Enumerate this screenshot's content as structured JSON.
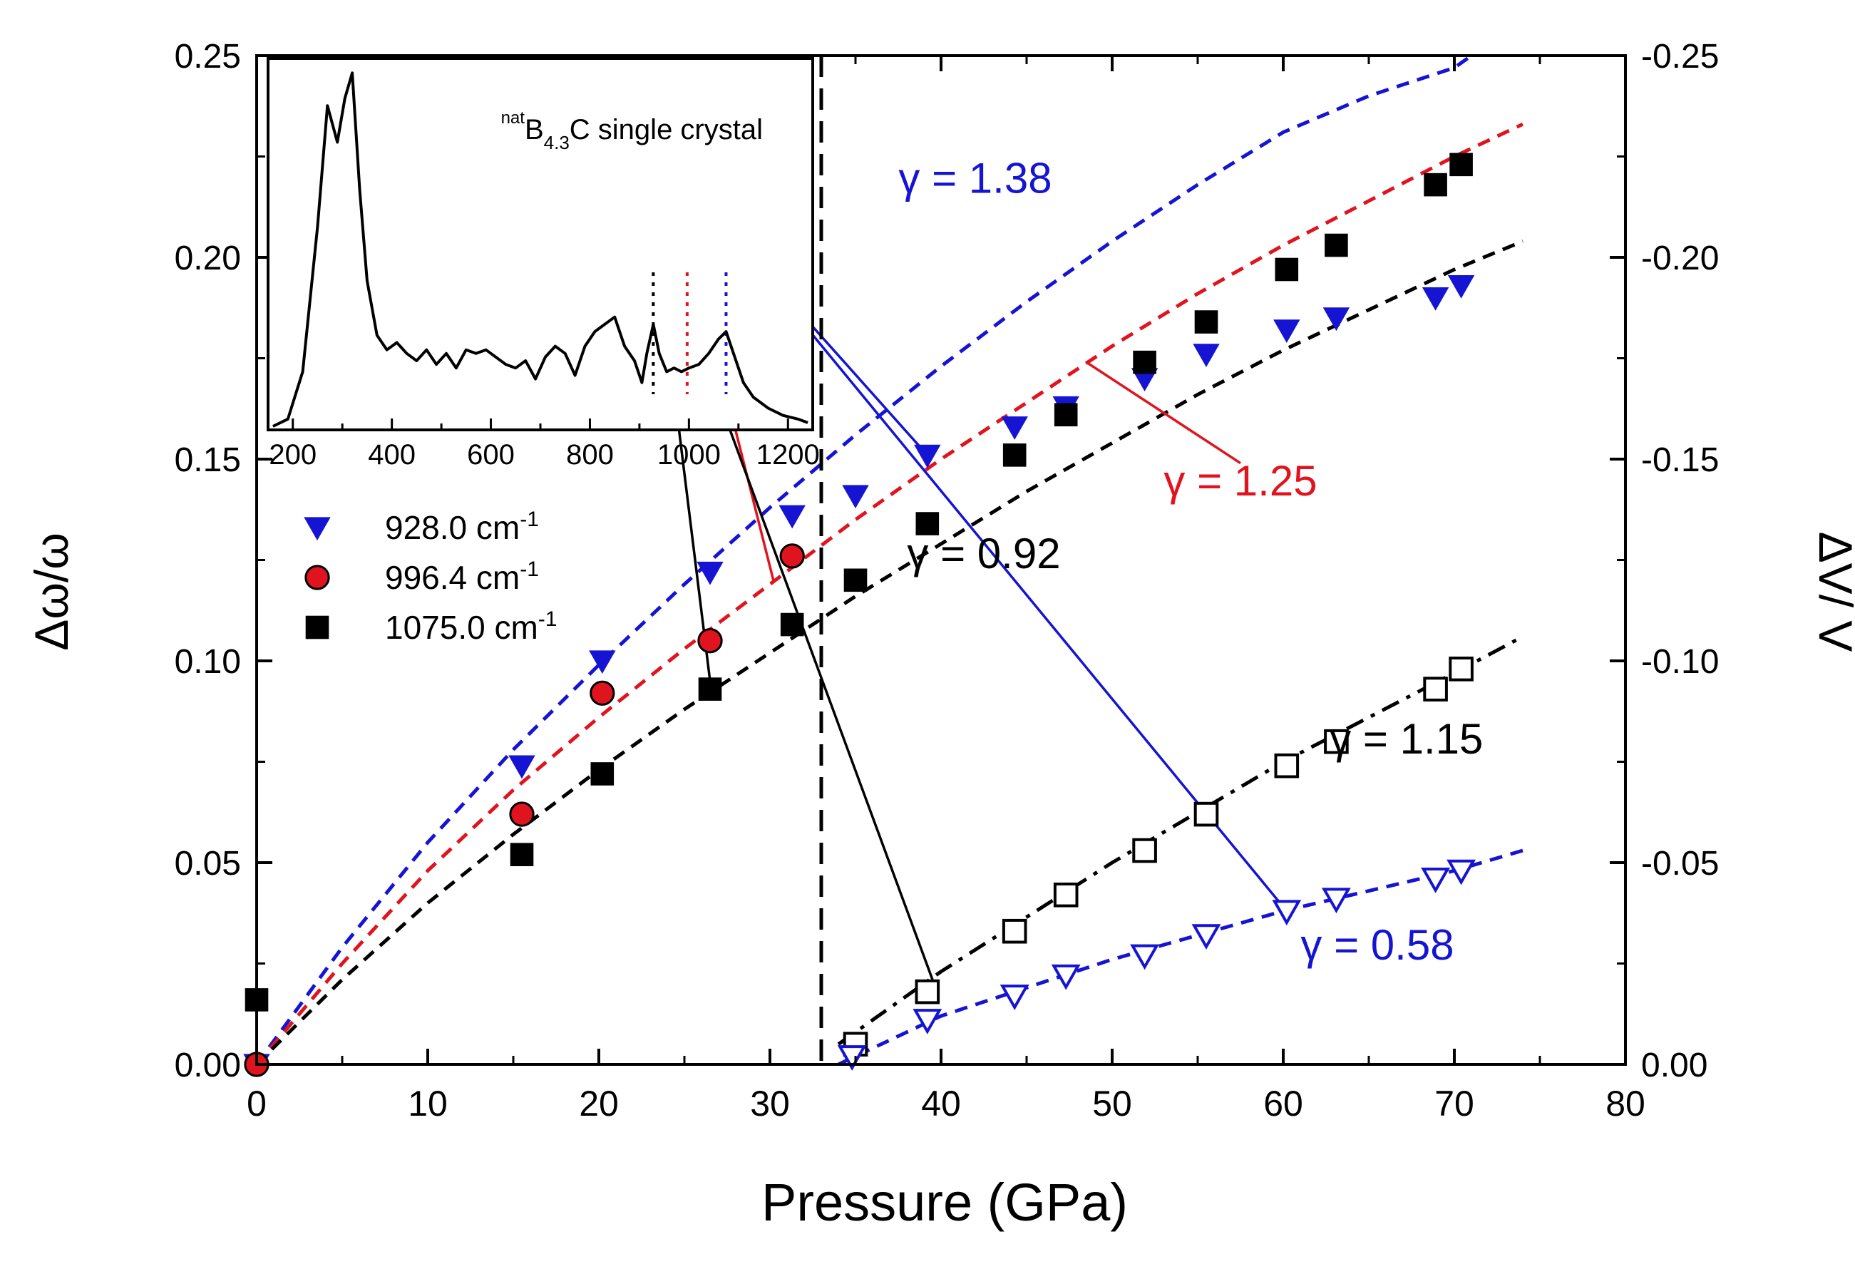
{
  "chart_data": {
    "type": "scatter",
    "xlabel": "Pressure (GPa)",
    "ylabel_left": "Δω/ω",
    "ylabel_right": "ΔV/ V",
    "xlim": [
      0,
      80
    ],
    "ylim_left": [
      0,
      0.25
    ],
    "ylim_right": [
      0,
      -0.25
    ],
    "x_ticks": [
      "0",
      "10",
      "20",
      "30",
      "40",
      "50",
      "60",
      "70",
      "80"
    ],
    "y_ticks_left": [
      "0.00",
      "0.05",
      "0.10",
      "0.15",
      "0.20",
      "0.25"
    ],
    "y_ticks_right": [
      "0.00",
      "-0.05",
      "-0.10",
      "-0.15",
      "-0.20",
      "-0.25"
    ],
    "transition_pressure": 33,
    "legend": {
      "placement": "left-middle",
      "entries": [
        {
          "label": "928.0 cm",
          "sup": "-1",
          "marker": "triangle-down",
          "color": "#1414d2"
        },
        {
          "label": "996.4 cm",
          "sup": "-1",
          "marker": "circle",
          "color": "#e0141e"
        },
        {
          "label": "1075.0 cm",
          "sup": "-1",
          "marker": "square",
          "color": "#000000"
        }
      ]
    },
    "series": [
      {
        "name": "928.0 cm-1",
        "marker": "triangle-down",
        "color": "#1414d2",
        "filled": true,
        "axis": "left",
        "x": [
          0,
          15.5,
          20.2,
          26.5,
          31.3,
          35.0,
          39.2,
          44.3,
          47.3,
          51.9,
          55.5,
          60.2,
          63.1,
          68.9,
          70.4
        ],
        "y": [
          0.0,
          0.074,
          0.1,
          0.122,
          0.136,
          0.141,
          0.151,
          0.158,
          0.163,
          0.17,
          0.176,
          0.182,
          0.185,
          0.19,
          0.193
        ]
      },
      {
        "name": "996.4 cm-1",
        "marker": "circle",
        "color": "#e0141e",
        "filled": true,
        "axis": "left",
        "x": [
          0,
          15.5,
          20.2,
          26.5,
          31.3
        ],
        "y": [
          0.0,
          0.062,
          0.092,
          0.105,
          0.126
        ]
      },
      {
        "name": "1075.0 cm-1",
        "marker": "square",
        "color": "#000000",
        "filled": true,
        "axis": "left",
        "x": [
          0,
          15.5,
          20.2,
          26.5,
          31.3,
          35.0,
          39.2,
          44.3,
          47.3,
          51.9,
          55.5,
          60.2,
          63.1,
          68.9,
          70.4
        ],
        "y": [
          0.016,
          0.052,
          0.072,
          0.093,
          0.109,
          0.12,
          0.134,
          0.151,
          0.161,
          0.174,
          0.184,
          0.197,
          0.203,
          0.218,
          0.223
        ]
      },
      {
        "name": "ΔV/V (square)",
        "marker": "square",
        "color": "#000000",
        "filled": false,
        "axis": "right",
        "x": [
          35.0,
          39.2,
          44.3,
          47.3,
          51.9,
          55.5,
          60.2,
          63.1,
          68.9,
          70.4
        ],
        "y": [
          -0.005,
          -0.018,
          -0.033,
          -0.042,
          -0.053,
          -0.062,
          -0.074,
          -0.08,
          -0.093,
          -0.098
        ]
      },
      {
        "name": "ΔV/V (triangle)",
        "marker": "triangle-down",
        "color": "#1414d2",
        "filled": false,
        "axis": "right",
        "x": [
          34.8,
          39.2,
          44.3,
          47.3,
          51.9,
          55.5,
          60.2,
          63.1,
          68.9,
          70.4
        ],
        "y": [
          -0.002,
          -0.011,
          -0.017,
          -0.022,
          -0.027,
          -0.032,
          -0.038,
          -0.041,
          -0.046,
          -0.048
        ]
      }
    ],
    "fits": [
      {
        "color": "#1414d2",
        "dash": "dash",
        "x": [
          0,
          5,
          10,
          15,
          20,
          25,
          30,
          35,
          40,
          45,
          50,
          55,
          60,
          65,
          70,
          71
        ],
        "y": [
          0,
          0.029,
          0.055,
          0.078,
          0.099,
          0.119,
          0.138,
          0.156,
          0.173,
          0.189,
          0.204,
          0.218,
          0.231,
          0.24,
          0.247,
          0.25
        ]
      },
      {
        "color": "#e0141e",
        "dash": "dash",
        "x": [
          0,
          5,
          10,
          15,
          20,
          25,
          30,
          35,
          40,
          45,
          50,
          55,
          60,
          65,
          70,
          74
        ],
        "y": [
          0,
          0.025,
          0.048,
          0.068,
          0.086,
          0.103,
          0.119,
          0.135,
          0.15,
          0.164,
          0.178,
          0.191,
          0.203,
          0.214,
          0.225,
          0.233
        ]
      },
      {
        "color": "#000000",
        "dash": "dash",
        "x": [
          0,
          5,
          10,
          15,
          20,
          25,
          30,
          35,
          40,
          45,
          50,
          55,
          60,
          65,
          70,
          74
        ],
        "y": [
          0,
          0.021,
          0.04,
          0.057,
          0.073,
          0.088,
          0.102,
          0.116,
          0.129,
          0.142,
          0.154,
          0.166,
          0.177,
          0.187,
          0.197,
          0.204
        ]
      },
      {
        "color": "#000000",
        "dash": "dashdot",
        "x": [
          34,
          40,
          50,
          60,
          70,
          74
        ],
        "y": [
          0.005,
          0.023,
          0.05,
          0.075,
          0.097,
          0.106
        ]
      },
      {
        "color": "#1414d2",
        "dash": "dash",
        "x": [
          34,
          40,
          50,
          60,
          70,
          74
        ],
        "y": [
          0.0,
          0.012,
          0.026,
          0.038,
          0.048,
          0.053
        ]
      }
    ],
    "annotations": [
      {
        "text": "γ = 1.38",
        "color": "#1414d2",
        "x": 42.0,
        "y": 0.216
      },
      {
        "text": "γ = 1.25",
        "color": "#e0141e",
        "x": 57.5,
        "y": 0.141
      },
      {
        "text": "γ = 0.92",
        "color": "#000000",
        "x": 42.5,
        "y": 0.123
      },
      {
        "text": "γ = 1.15",
        "color": "#000000",
        "x": 67.2,
        "y": 0.077
      },
      {
        "text": "γ = 0.58",
        "color": "#1414d2",
        "x": 65.5,
        "y": 0.026
      }
    ],
    "connector_lines": [
      {
        "color": "#1414d2",
        "from_inset": [
          1075,
          0.75
        ],
        "to": [
          39.2,
          0.151
        ]
      },
      {
        "color": "#1414d2",
        "from_inset": [
          1075,
          0.75
        ],
        "to": [
          60.2,
          0.038
        ]
      },
      {
        "color": "#e0141e",
        "from_inset": [
          996,
          0.72
        ],
        "to": [
          30.2,
          0.12
        ]
      },
      {
        "color": "#e0141e",
        "from": [
          48.5,
          0.174
        ],
        "to": [
          57.5,
          0.149
        ]
      },
      {
        "color": "#000000",
        "from_inset": [
          928,
          0.78
        ],
        "to": [
          26.5,
          0.095
        ]
      },
      {
        "color": "#000000",
        "from_inset": [
          928,
          0.78
        ],
        "to": [
          39.5,
          0.021
        ]
      }
    ],
    "inset": {
      "title": "B",
      "title_pre": "nat",
      "title_sub": "4.3",
      "title_post": "C single crystal",
      "xlim": [
        150,
        1250
      ],
      "x_ticks": [
        "200",
        "400",
        "600",
        "800",
        "1000",
        "1200"
      ],
      "x_tick_values": [
        200,
        400,
        600,
        800,
        1000,
        1200
      ],
      "markers": [
        {
          "x": 928,
          "color": "#000000"
        },
        {
          "x": 996.4,
          "color": "#e0141e"
        },
        {
          "x": 1075,
          "color": "#1414d2"
        }
      ],
      "spectrum_x": [
        160,
        190,
        220,
        250,
        270,
        290,
        305,
        320,
        335,
        350,
        370,
        390,
        410,
        430,
        450,
        470,
        490,
        510,
        530,
        550,
        570,
        590,
        610,
        630,
        650,
        670,
        690,
        710,
        730,
        750,
        770,
        790,
        810,
        830,
        850,
        870,
        890,
        905,
        915,
        928,
        940,
        955,
        970,
        985,
        1000,
        1020,
        1040,
        1060,
        1075,
        1090,
        1110,
        1130,
        1160,
        1190,
        1220,
        1240
      ],
      "spectrum_y": [
        0.0,
        0.02,
        0.15,
        0.55,
        0.88,
        0.78,
        0.9,
        0.97,
        0.65,
        0.4,
        0.25,
        0.21,
        0.23,
        0.2,
        0.18,
        0.21,
        0.17,
        0.2,
        0.16,
        0.21,
        0.2,
        0.21,
        0.19,
        0.17,
        0.16,
        0.18,
        0.13,
        0.19,
        0.22,
        0.2,
        0.14,
        0.22,
        0.26,
        0.28,
        0.3,
        0.22,
        0.18,
        0.12,
        0.2,
        0.28,
        0.2,
        0.15,
        0.16,
        0.15,
        0.16,
        0.17,
        0.2,
        0.24,
        0.26,
        0.2,
        0.12,
        0.08,
        0.05,
        0.03,
        0.02,
        0.01
      ]
    }
  }
}
